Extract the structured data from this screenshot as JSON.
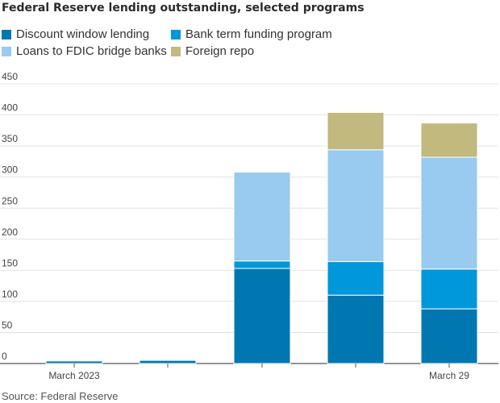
{
  "chart_data": {
    "type": "bar",
    "stacked": true,
    "title": "Federal Reserve lending outstanding, selected programs",
    "categories": [
      "March 2023",
      "",
      "",
      "",
      "March 29"
    ],
    "series": [
      {
        "name": "Discount window lending",
        "color": "#0077b0",
        "values": [
          4,
          5,
          153,
          110,
          88
        ]
      },
      {
        "name": "Bank term funding program",
        "color": "#0097db",
        "values": [
          0,
          0,
          12,
          54,
          64
        ]
      },
      {
        "name": "Loans to FDIC bridge banks",
        "color": "#98cbef",
        "values": [
          0,
          0,
          143,
          180,
          180
        ]
      },
      {
        "name": "Foreign repo",
        "color": "#c1b97d",
        "values": [
          0,
          0,
          0,
          60,
          55
        ]
      }
    ],
    "yticks": [
      0,
      50,
      100,
      150,
      200,
      250,
      300,
      350,
      400,
      450
    ],
    "ylim": [
      0,
      460
    ],
    "xlabel": "",
    "ylabel": "",
    "source": "Source: Federal Reserve"
  }
}
